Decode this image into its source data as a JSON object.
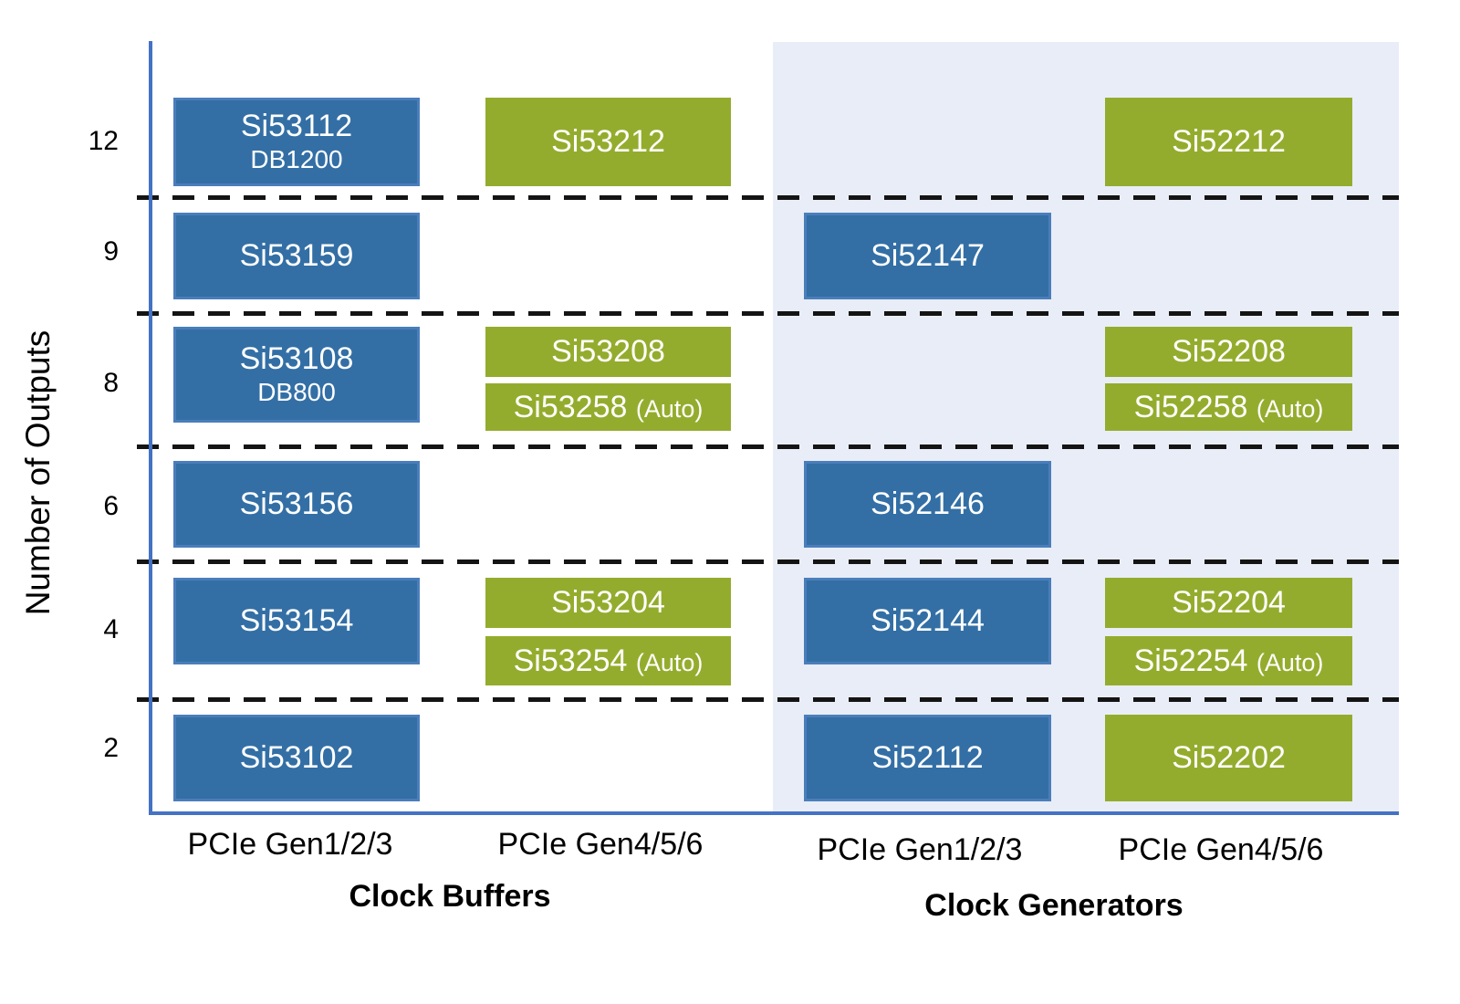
{
  "colors": {
    "product_blue": "#336fa5",
    "product_blue_border": "#4a7ebb",
    "product_green": "#94ac2d",
    "generators_panel": "#e9edf7",
    "axis": "#4472c4",
    "separator": "#141414",
    "text": "#000000"
  },
  "chart_data": {
    "type": "table",
    "title": "",
    "ylabel": "Number of Outputs",
    "y_ticks": [
      "12",
      "9",
      "8",
      "6",
      "4",
      "2"
    ],
    "y_categories": [
      12,
      9,
      8,
      6,
      4,
      2
    ],
    "groups": [
      {
        "label": "Clock Buffers",
        "categories": [
          "PCIe Gen1/2/3",
          "PCIe Gen4/5/6"
        ]
      },
      {
        "label": "Clock Generators",
        "categories": [
          "PCIe Gen1/2/3",
          "PCIe Gen4/5/6"
        ]
      }
    ],
    "legend_hint": "blue boxes = PCIe Gen1/2/3 parts, green boxes = PCIe Gen4/5/6 parts",
    "products": [
      {
        "part": "Si53112",
        "note": "DB1200",
        "suffix": "",
        "outputs": 12,
        "group": "Clock Buffers",
        "category": "PCIe Gen1/2/3",
        "color": "blue",
        "slot": "full"
      },
      {
        "part": "Si53212",
        "note": "",
        "suffix": "",
        "outputs": 12,
        "group": "Clock Buffers",
        "category": "PCIe Gen4/5/6",
        "color": "green",
        "slot": "full"
      },
      {
        "part": "Si52212",
        "note": "",
        "suffix": "",
        "outputs": 12,
        "group": "Clock Generators",
        "category": "PCIe Gen4/5/6",
        "color": "green",
        "slot": "full"
      },
      {
        "part": "Si53159",
        "note": "",
        "suffix": "",
        "outputs": 9,
        "group": "Clock Buffers",
        "category": "PCIe Gen1/2/3",
        "color": "blue",
        "slot": "full"
      },
      {
        "part": "Si52147",
        "note": "",
        "suffix": "",
        "outputs": 9,
        "group": "Clock Generators",
        "category": "PCIe Gen1/2/3",
        "color": "blue",
        "slot": "full"
      },
      {
        "part": "Si53108",
        "note": "DB800",
        "suffix": "",
        "outputs": 8,
        "group": "Clock Buffers",
        "category": "PCIe Gen1/2/3",
        "color": "blue",
        "slot": "full"
      },
      {
        "part": "Si53208",
        "note": "",
        "suffix": "",
        "outputs": 8,
        "group": "Clock Buffers",
        "category": "PCIe Gen4/5/6",
        "color": "green",
        "slot": "top"
      },
      {
        "part": "Si53258",
        "note": "",
        "suffix": "(Auto)",
        "outputs": 8,
        "group": "Clock Buffers",
        "category": "PCIe Gen4/5/6",
        "color": "green",
        "slot": "bottom"
      },
      {
        "part": "Si52208",
        "note": "",
        "suffix": "",
        "outputs": 8,
        "group": "Clock Generators",
        "category": "PCIe Gen4/5/6",
        "color": "green",
        "slot": "top"
      },
      {
        "part": "Si52258",
        "note": "",
        "suffix": "(Auto)",
        "outputs": 8,
        "group": "Clock Generators",
        "category": "PCIe Gen4/5/6",
        "color": "green",
        "slot": "bottom"
      },
      {
        "part": "Si53156",
        "note": "",
        "suffix": "",
        "outputs": 6,
        "group": "Clock Buffers",
        "category": "PCIe Gen1/2/3",
        "color": "blue",
        "slot": "full"
      },
      {
        "part": "Si52146",
        "note": "",
        "suffix": "",
        "outputs": 6,
        "group": "Clock Generators",
        "category": "PCIe Gen1/2/3",
        "color": "blue",
        "slot": "full"
      },
      {
        "part": "Si53154",
        "note": "",
        "suffix": "",
        "outputs": 4,
        "group": "Clock Buffers",
        "category": "PCIe Gen1/2/3",
        "color": "blue",
        "slot": "full"
      },
      {
        "part": "Si53204",
        "note": "",
        "suffix": "",
        "outputs": 4,
        "group": "Clock Buffers",
        "category": "PCIe Gen4/5/6",
        "color": "green",
        "slot": "top"
      },
      {
        "part": "Si53254",
        "note": "",
        "suffix": "(Auto)",
        "outputs": 4,
        "group": "Clock Buffers",
        "category": "PCIe Gen4/5/6",
        "color": "green",
        "slot": "bottom"
      },
      {
        "part": "Si52144",
        "note": "",
        "suffix": "",
        "outputs": 4,
        "group": "Clock Generators",
        "category": "PCIe Gen1/2/3",
        "color": "blue",
        "slot": "full"
      },
      {
        "part": "Si52204",
        "note": "",
        "suffix": "",
        "outputs": 4,
        "group": "Clock Generators",
        "category": "PCIe Gen4/5/6",
        "color": "green",
        "slot": "top"
      },
      {
        "part": "Si52254",
        "note": "",
        "suffix": "(Auto)",
        "outputs": 4,
        "group": "Clock Generators",
        "category": "PCIe Gen4/5/6",
        "color": "green",
        "slot": "bottom"
      },
      {
        "part": "Si53102",
        "note": "",
        "suffix": "",
        "outputs": 2,
        "group": "Clock Buffers",
        "category": "PCIe Gen1/2/3",
        "color": "blue",
        "slot": "full"
      },
      {
        "part": "Si52112",
        "note": "",
        "suffix": "",
        "outputs": 2,
        "group": "Clock Generators",
        "category": "PCIe Gen1/2/3",
        "color": "blue",
        "slot": "full"
      },
      {
        "part": "Si52202",
        "note": "",
        "suffix": "",
        "outputs": 2,
        "group": "Clock Generators",
        "category": "PCIe Gen4/5/6",
        "color": "green",
        "slot": "full"
      }
    ]
  }
}
